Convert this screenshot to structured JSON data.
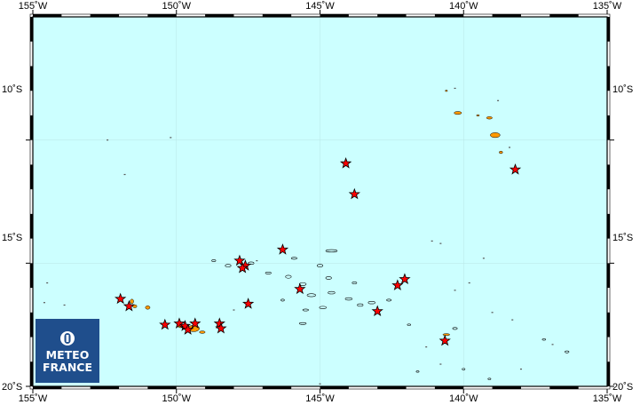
{
  "map": {
    "extent": {
      "lon_min": -155,
      "lon_max": -135,
      "lat_min": -20,
      "lat_max": -5
    },
    "frame_ticks_lon": [
      -155,
      -150,
      -145,
      -140,
      -135
    ],
    "frame_ticks_lat": [
      -10,
      -15,
      -20
    ],
    "colors": {
      "ocean": "#ccffff",
      "land_low": "#ff9900",
      "land_high": "#e6b800",
      "marker_fill": "#ff0000",
      "marker_stroke": "#000000",
      "logo_bg": "#1f4e8c"
    },
    "labels": {
      "top": [
        "155˚W",
        "150˚W",
        "145˚W",
        "140˚W",
        "135˚W"
      ],
      "bottom": [
        "155˚W",
        "150˚W",
        "145˚W",
        "140˚W",
        "135˚W"
      ],
      "left": [
        "10˚S",
        "15˚S",
        "20˚S"
      ],
      "right": [
        "10˚S",
        "15˚S",
        "20˚S"
      ]
    },
    "markers": [
      {
        "lon": -144.1,
        "lat": -10.95
      },
      {
        "lon": -143.8,
        "lat": -12.2
      },
      {
        "lon": -138.2,
        "lat": -11.2
      },
      {
        "lon": -146.3,
        "lat": -14.45
      },
      {
        "lon": -147.8,
        "lat": -14.9
      },
      {
        "lon": -147.6,
        "lat": -15.1
      },
      {
        "lon": -147.7,
        "lat": -15.2
      },
      {
        "lon": -145.7,
        "lat": -16.05
      },
      {
        "lon": -142.3,
        "lat": -15.9
      },
      {
        "lon": -142.05,
        "lat": -15.65
      },
      {
        "lon": -143.0,
        "lat": -16.95
      },
      {
        "lon": -151.95,
        "lat": -16.45
      },
      {
        "lon": -151.65,
        "lat": -16.75
      },
      {
        "lon": -147.5,
        "lat": -16.65
      },
      {
        "lon": -150.4,
        "lat": -17.5
      },
      {
        "lon": -149.9,
        "lat": -17.45
      },
      {
        "lon": -149.7,
        "lat": -17.55
      },
      {
        "lon": -149.6,
        "lat": -17.7
      },
      {
        "lon": -149.35,
        "lat": -17.45
      },
      {
        "lon": -148.5,
        "lat": -17.45
      },
      {
        "lon": -148.45,
        "lat": -17.65
      },
      {
        "lon": -140.65,
        "lat": -18.15
      }
    ],
    "high_islands": [
      {
        "lon": -140.2,
        "lat": -8.9,
        "rx": 0.13,
        "ry": 0.06
      },
      {
        "lon": -139.5,
        "lat": -9.0,
        "rx": 0.05,
        "ry": 0.03
      },
      {
        "lon": -139.1,
        "lat": -9.1,
        "rx": 0.1,
        "ry": 0.05
      },
      {
        "lon": -138.9,
        "lat": -9.8,
        "rx": 0.17,
        "ry": 0.1
      },
      {
        "lon": -138.7,
        "lat": -10.5,
        "rx": 0.06,
        "ry": 0.05
      },
      {
        "lon": -140.6,
        "lat": -8.0,
        "rx": 0.04,
        "ry": 0.03
      },
      {
        "lon": -151.55,
        "lat": -16.55,
        "rx": 0.06,
        "ry": 0.09
      },
      {
        "lon": -151.0,
        "lat": -16.8,
        "rx": 0.08,
        "ry": 0.07
      },
      {
        "lon": -151.45,
        "lat": -16.75,
        "rx": 0.07,
        "ry": 0.06
      },
      {
        "lon": -149.85,
        "lat": -17.55,
        "rx": 0.1,
        "ry": 0.07
      },
      {
        "lon": -149.4,
        "lat": -17.65,
        "rx": 0.2,
        "ry": 0.13
      },
      {
        "lon": -149.1,
        "lat": -17.8,
        "rx": 0.1,
        "ry": 0.05
      },
      {
        "lon": -140.6,
        "lat": -17.9,
        "rx": 0.12,
        "ry": 0.04
      }
    ],
    "atolls": [
      {
        "lon": -148.7,
        "lat": -14.9,
        "rx": 0.07,
        "ry": 0.04
      },
      {
        "lon": -148.2,
        "lat": -15.1,
        "rx": 0.1,
        "ry": 0.05
      },
      {
        "lon": -147.4,
        "lat": -15.0,
        "rx": 0.1,
        "ry": 0.05
      },
      {
        "lon": -146.8,
        "lat": -15.4,
        "rx": 0.1,
        "ry": 0.04
      },
      {
        "lon": -146.1,
        "lat": -15.55,
        "rx": 0.1,
        "ry": 0.06
      },
      {
        "lon": -145.6,
        "lat": -15.85,
        "rx": 0.12,
        "ry": 0.06
      },
      {
        "lon": -145.3,
        "lat": -16.3,
        "rx": 0.15,
        "ry": 0.06
      },
      {
        "lon": -144.6,
        "lat": -16.2,
        "rx": 0.12,
        "ry": 0.05
      },
      {
        "lon": -144.7,
        "lat": -15.6,
        "rx": 0.1,
        "ry": 0.05
      },
      {
        "lon": -144.0,
        "lat": -16.45,
        "rx": 0.12,
        "ry": 0.05
      },
      {
        "lon": -143.6,
        "lat": -16.7,
        "rx": 0.1,
        "ry": 0.05
      },
      {
        "lon": -143.2,
        "lat": -16.6,
        "rx": 0.12,
        "ry": 0.05
      },
      {
        "lon": -144.9,
        "lat": -16.8,
        "rx": 0.12,
        "ry": 0.05
      },
      {
        "lon": -145.5,
        "lat": -16.9,
        "rx": 0.1,
        "ry": 0.04
      },
      {
        "lon": -146.3,
        "lat": -16.5,
        "rx": 0.06,
        "ry": 0.04
      },
      {
        "lon": -145.9,
        "lat": -14.8,
        "rx": 0.1,
        "ry": 0.04
      },
      {
        "lon": -144.6,
        "lat": -14.5,
        "rx": 0.2,
        "ry": 0.05
      },
      {
        "lon": -145.0,
        "lat": -15.1,
        "rx": 0.1,
        "ry": 0.05
      },
      {
        "lon": -143.8,
        "lat": -15.8,
        "rx": 0.08,
        "ry": 0.04
      },
      {
        "lon": -142.6,
        "lat": -16.5,
        "rx": 0.08,
        "ry": 0.04
      },
      {
        "lon": -145.6,
        "lat": -17.45,
        "rx": 0.12,
        "ry": 0.04
      },
      {
        "lon": -141.9,
        "lat": -17.5,
        "rx": 0.06,
        "ry": 0.03
      },
      {
        "lon": -137.2,
        "lat": -18.1,
        "rx": 0.06,
        "ry": 0.03
      },
      {
        "lon": -136.4,
        "lat": -18.6,
        "rx": 0.07,
        "ry": 0.04
      },
      {
        "lon": -140.3,
        "lat": -17.65,
        "rx": 0.08,
        "ry": 0.04
      },
      {
        "lon": -139.1,
        "lat": -19.7,
        "rx": 0.05,
        "ry": 0.03
      },
      {
        "lon": -140.0,
        "lat": -19.3,
        "rx": 0.05,
        "ry": 0.03
      },
      {
        "lon": -141.6,
        "lat": -19.4,
        "rx": 0.05,
        "ry": 0.03
      }
    ],
    "specks": [
      {
        "lon": -150.2,
        "lat": -9.9
      },
      {
        "lon": -152.4,
        "lat": -10.0
      },
      {
        "lon": -151.8,
        "lat": -11.4
      },
      {
        "lon": -154.5,
        "lat": -15.8
      },
      {
        "lon": -154.6,
        "lat": -16.6
      },
      {
        "lon": -153.9,
        "lat": -16.7
      },
      {
        "lon": -148.0,
        "lat": -16.9
      },
      {
        "lon": -147.2,
        "lat": -14.9
      },
      {
        "lon": -141.1,
        "lat": -14.1
      },
      {
        "lon": -140.8,
        "lat": -14.2
      },
      {
        "lon": -139.3,
        "lat": -14.8
      },
      {
        "lon": -140.3,
        "lat": -16.1
      },
      {
        "lon": -139.8,
        "lat": -15.8
      },
      {
        "lon": -139.0,
        "lat": -17.0
      },
      {
        "lon": -138.3,
        "lat": -17.3
      },
      {
        "lon": -145.0,
        "lat": -19.9
      },
      {
        "lon": -140.3,
        "lat": -7.9
      },
      {
        "lon": -138.8,
        "lat": -8.4
      },
      {
        "lon": -138.4,
        "lat": -10.3
      },
      {
        "lon": -141.3,
        "lat": -18.4
      },
      {
        "lon": -140.8,
        "lat": -19.1
      },
      {
        "lon": -138.0,
        "lat": -19.3
      },
      {
        "lon": -136.9,
        "lat": -18.3
      }
    ],
    "logo": {
      "line1": "METEO",
      "line2": "FRANCE"
    }
  }
}
